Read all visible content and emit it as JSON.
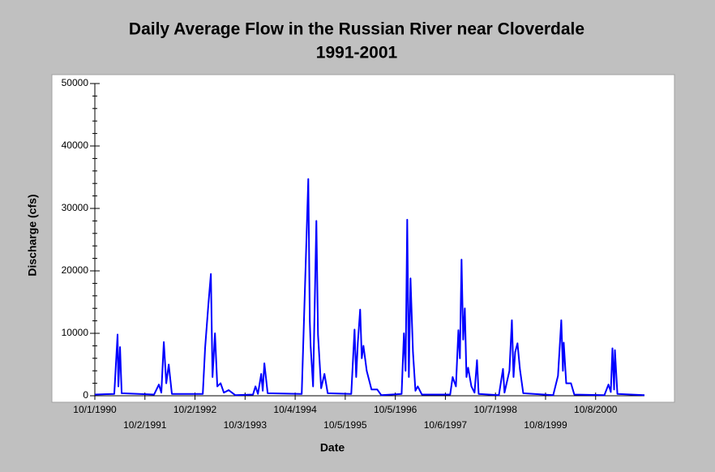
{
  "chart_data": {
    "type": "line",
    "title": "Daily Average Flow in the Russian River near Cloverdale",
    "subtitle": "1991-2001",
    "x_label": "Date",
    "y_label": "Discharge (cfs)",
    "color": "#0000ff",
    "x": [
      "1990-10-01",
      "1991-02-20",
      "1991-03-16",
      "1991-03-22",
      "1991-04-03",
      "1991-04-15",
      "1991-12-08",
      "1992-01-12",
      "1992-01-30",
      "1992-02-17",
      "1992-03-06",
      "1992-03-24",
      "1992-04-16",
      "1992-11-28",
      "1992-12-15",
      "1993-01-08",
      "1993-01-26",
      "1993-02-07",
      "1993-02-25",
      "1993-03-14",
      "1993-04-07",
      "1993-05-01",
      "1993-06-05",
      "1993-07-23",
      "1993-11-30",
      "1993-12-18",
      "1994-01-05",
      "1994-01-29",
      "1994-02-09",
      "1994-02-21",
      "1994-03-17",
      "1994-11-21",
      "1995-01-08",
      "1995-01-19",
      "1995-01-25",
      "1995-02-12",
      "1995-03-08",
      "1995-03-20",
      "1995-04-12",
      "1995-05-06",
      "1995-05-30",
      "1995-11-18",
      "1995-12-12",
      "1995-12-24",
      "1996-01-05",
      "1996-01-22",
      "1996-02-03",
      "1996-02-15",
      "1996-03-10",
      "1996-04-14",
      "1996-05-26",
      "1996-06-24",
      "1996-11-20",
      "1996-12-07",
      "1996-12-19",
      "1996-12-31",
      "1997-01-12",
      "1997-01-24",
      "1997-02-11",
      "1997-03-01",
      "1997-03-18",
      "1997-04-17",
      "1997-11-10",
      "1997-11-28",
      "1997-12-22",
      "1998-01-09",
      "1998-01-20",
      "1998-02-01",
      "1998-02-13",
      "1998-02-25",
      "1998-03-09",
      "1998-03-21",
      "1998-04-14",
      "1998-05-07",
      "1998-05-25",
      "1998-06-06",
      "1998-11-01",
      "1998-12-01",
      "1998-12-12",
      "1999-01-17",
      "1999-02-04",
      "1999-02-16",
      "1999-02-28",
      "1999-03-17",
      "1999-04-04",
      "1999-04-28",
      "1999-12-03",
      "2000-01-07",
      "2000-01-31",
      "2000-02-12",
      "2000-02-18",
      "2000-03-07",
      "2000-04-11",
      "2000-05-05",
      "2000-12-11",
      "2001-01-10",
      "2001-01-27",
      "2001-02-08",
      "2001-02-20",
      "2001-02-26",
      "2001-03-16",
      "2001-09-30"
    ],
    "values": [
      200,
      300,
      9800,
      1500,
      7800,
      400,
      200,
      1800,
      500,
      8600,
      2000,
      5000,
      300,
      300,
      7700,
      14700,
      19500,
      3000,
      10000,
      1500,
      2000,
      500,
      900,
      100,
      200,
      1500,
      300,
      3500,
      800,
      5200,
      400,
      300,
      34700,
      12000,
      8000,
      1500,
      28000,
      9800,
      1200,
      3500,
      400,
      300,
      10600,
      3000,
      8500,
      13800,
      6000,
      8000,
      4000,
      1000,
      1000,
      100,
      300,
      10000,
      4000,
      28200,
      3000,
      18800,
      7000,
      800,
      1500,
      200,
      200,
      3000,
      1500,
      10500,
      6000,
      21800,
      9000,
      14000,
      3000,
      4500,
      1500,
      500,
      5700,
      300,
      100,
      4300,
      500,
      4000,
      12100,
      3000,
      7000,
      8400,
      4200,
      400,
      100,
      3200,
      12100,
      4000,
      8500,
      2000,
      2000,
      200,
      100,
      1800,
      600,
      7600,
      1000,
      7300,
      300,
      100
    ],
    "xlim": [
      "1990-10-01",
      "2001-09-30"
    ],
    "xticks": [
      "10/1/1990",
      "10/2/1991",
      "10/2/1992",
      "10/3/1993",
      "10/4/1994",
      "10/5/1995",
      "10/5/1996",
      "10/6/1997",
      "10/7/1998",
      "10/8/1999",
      "10/8/2000"
    ],
    "ylim": [
      0,
      50000
    ],
    "yticks": [
      0,
      10000,
      20000,
      30000,
      40000,
      50000
    ],
    "grid": false
  }
}
